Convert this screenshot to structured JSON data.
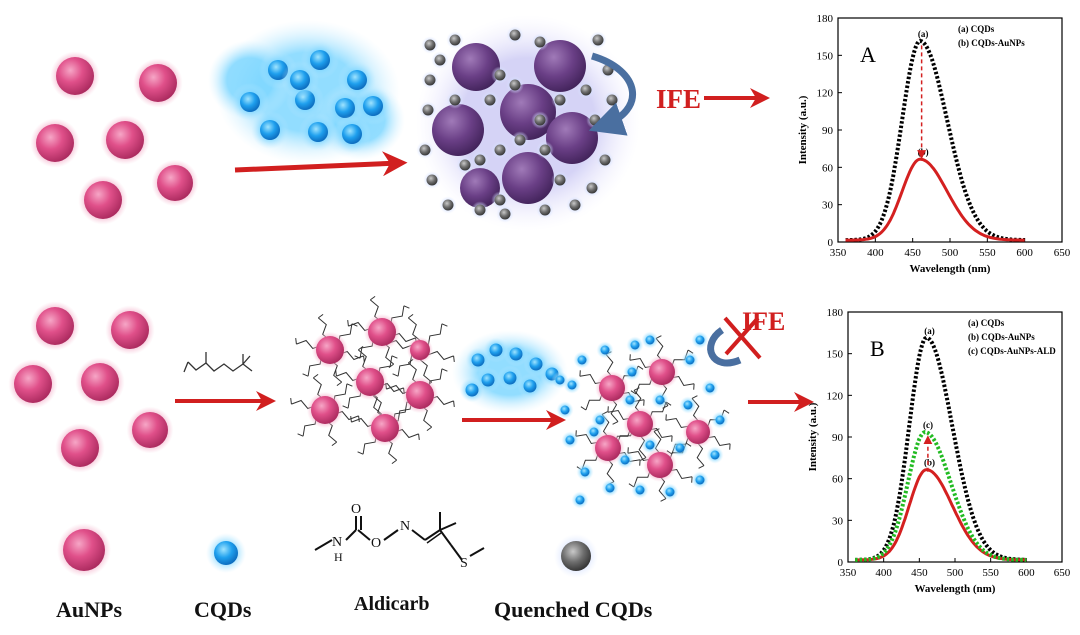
{
  "panel_a": {
    "label": "IFE"
  },
  "panel_b": {
    "label": "IFE"
  },
  "legend": {
    "aunps": "AuNPs",
    "cqds": "CQDs",
    "aldicarb": "Aldicarb",
    "quenched": "Quenched CQDs"
  },
  "molecule": {
    "atoms": {
      "o_carbonyl": "O",
      "o_ester": "O",
      "n_imine": "N",
      "nh": "N",
      "h": "H",
      "s": "S"
    }
  },
  "colors": {
    "aunp": "#e0508a",
    "cqd": "#1fa0ee",
    "quenched": "#6f6f6f",
    "arrow": "#d11f1f",
    "curve_a": "#000000",
    "curve_b": "#d42020",
    "curve_c": "#22bb22"
  },
  "chart_data": [
    {
      "type": "line",
      "panel_letter": "A",
      "xlabel": "Wavelength (nm)",
      "ylabel": "Intensity (a.u.)",
      "xlim": [
        350,
        650
      ],
      "ylim": [
        0,
        180
      ],
      "xticks": [
        350,
        400,
        450,
        500,
        550,
        600,
        650
      ],
      "yticks": [
        0,
        30,
        60,
        90,
        120,
        150,
        180
      ],
      "legend_position": "top-right",
      "series": [
        {
          "name": "(a) CQDs",
          "tag": "(a)",
          "color": "#000000",
          "style": "dotted",
          "peak_x": 460,
          "peak_y": 160,
          "x_start": 360,
          "x_end": 600
        },
        {
          "name": "(b) CQDs-AuNPs",
          "tag": "(b)",
          "color": "#d42020",
          "style": "solid",
          "peak_x": 460,
          "peak_y": 65,
          "x_start": 360,
          "x_end": 600
        }
      ],
      "arrow_from": 158,
      "arrow_to": 68
    },
    {
      "type": "line",
      "panel_letter": "B",
      "xlabel": "Wavelength (nm)",
      "ylabel": "Intensity (a.u.)",
      "xlim": [
        350,
        650
      ],
      "ylim": [
        0,
        180
      ],
      "xticks": [
        350,
        400,
        450,
        500,
        550,
        600,
        650
      ],
      "yticks": [
        0,
        30,
        60,
        90,
        120,
        150,
        180
      ],
      "legend_position": "top-right",
      "series": [
        {
          "name": "(a) CQDs",
          "tag": "(a)",
          "color": "#000000",
          "style": "dotted",
          "peak_x": 460,
          "peak_y": 160,
          "x_start": 360,
          "x_end": 600
        },
        {
          "name": "(b) CQDs-AuNPs",
          "tag": "(b)",
          "color": "#d42020",
          "style": "solid",
          "peak_x": 460,
          "peak_y": 65,
          "x_start": 360,
          "x_end": 600
        },
        {
          "name": "(c) CQDs-AuNPs-ALD",
          "tag": "(c)",
          "color": "#22bb22",
          "style": "dotted",
          "peak_x": 458,
          "peak_y": 92,
          "x_start": 360,
          "x_end": 600
        }
      ],
      "arrow_from": 65,
      "arrow_to": 90
    }
  ]
}
